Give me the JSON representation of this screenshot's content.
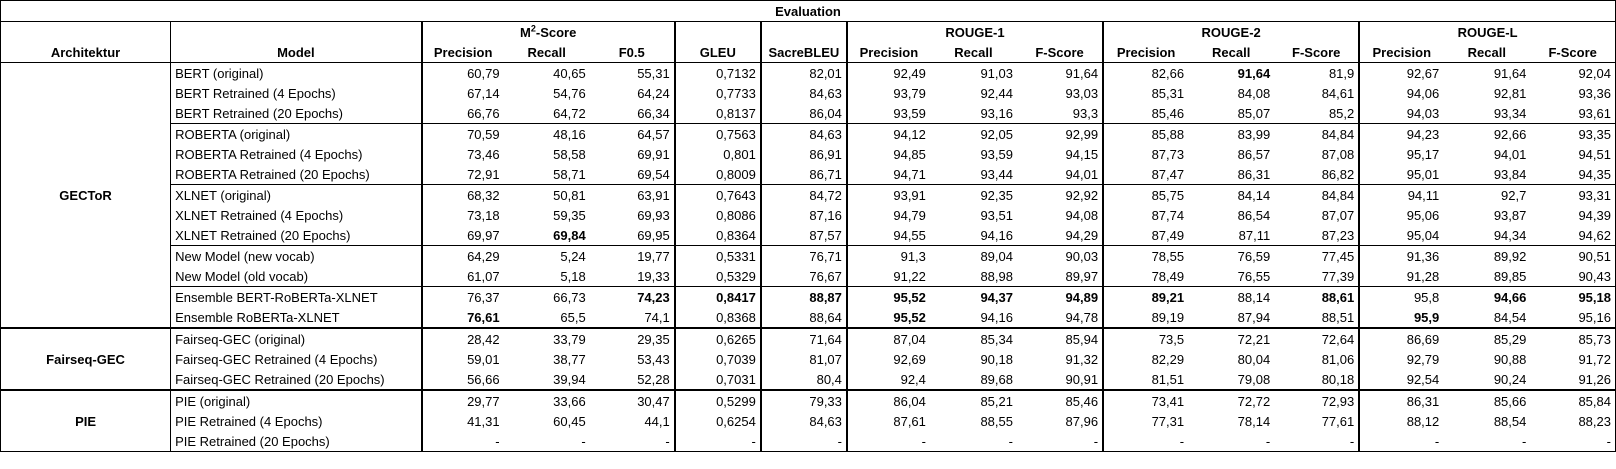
{
  "title": "Evaluation",
  "group_headers": {
    "m2": "M²-Score",
    "rouge1": "ROUGE-1",
    "rouge2": "ROUGE-2",
    "rougel": "ROUGE-L"
  },
  "columns": {
    "architecture": "Architektur",
    "model": "Model",
    "m2_precision": "Precision",
    "m2_recall": "Recall",
    "m2_f05": "F0.5",
    "gleu": "GLEU",
    "sacrebleu": "SacreBLEU",
    "r1_precision": "Precision",
    "r1_recall": "Recall",
    "r1_fscore": "F-Score",
    "r2_precision": "Precision",
    "r2_recall": "Recall",
    "r2_fscore": "F-Score",
    "rl_precision": "Precision",
    "rl_recall": "Recall",
    "rl_fscore": "F-Score"
  },
  "architectures": {
    "gector": "GECToR",
    "fairseq": "Fairseq-GEC",
    "pie": "PIE"
  },
  "rows": [
    {
      "model": "BERT (original)",
      "v": [
        "60,79",
        "40,65",
        "55,31",
        "0,7132",
        "82,01",
        "92,49",
        "91,03",
        "91,64",
        "82,66",
        "91,64",
        "81,9",
        "92,67",
        "91,64",
        "92,04"
      ]
    },
    {
      "model": "BERT Retrained (4 Epochs)",
      "v": [
        "67,14",
        "54,76",
        "64,24",
        "0,7733",
        "84,63",
        "93,79",
        "92,44",
        "93,03",
        "85,31",
        "84,08",
        "84,61",
        "94,06",
        "92,81",
        "93,36"
      ]
    },
    {
      "model": "BERT Retrained (20 Epochs)",
      "v": [
        "66,76",
        "64,72",
        "66,34",
        "0,8137",
        "86,04",
        "93,59",
        "93,16",
        "93,3",
        "85,46",
        "85,07",
        "85,2",
        "94,03",
        "93,34",
        "93,61"
      ]
    },
    {
      "model": "ROBERTA (original)",
      "v": [
        "70,59",
        "48,16",
        "64,57",
        "0,7563",
        "84,63",
        "94,12",
        "92,05",
        "92,99",
        "85,88",
        "83,99",
        "84,84",
        "94,23",
        "92,66",
        "93,35"
      ]
    },
    {
      "model": "ROBERTA Retrained (4 Epochs)",
      "v": [
        "73,46",
        "58,58",
        "69,91",
        "0,801",
        "86,91",
        "94,85",
        "93,59",
        "94,15",
        "87,73",
        "86,57",
        "87,08",
        "95,17",
        "94,01",
        "94,51"
      ]
    },
    {
      "model": "ROBERTA Retrained (20 Epochs)",
      "v": [
        "72,91",
        "58,71",
        "69,54",
        "0,8009",
        "86,71",
        "94,71",
        "93,44",
        "94,01",
        "87,47",
        "86,31",
        "86,82",
        "95,01",
        "93,84",
        "94,35"
      ]
    },
    {
      "model": "XLNET (original)",
      "v": [
        "68,32",
        "50,81",
        "63,91",
        "0,7643",
        "84,72",
        "93,91",
        "92,35",
        "92,92",
        "85,75",
        "84,14",
        "84,84",
        "94,11",
        "92,7",
        "93,31"
      ]
    },
    {
      "model": "XLNET Retrained (4 Epochs)",
      "v": [
        "73,18",
        "59,35",
        "69,93",
        "0,8086",
        "87,16",
        "94,79",
        "93,51",
        "94,08",
        "87,74",
        "86,54",
        "87,07",
        "95,06",
        "93,87",
        "94,39"
      ]
    },
    {
      "model": "XLNET Retrained (20 Epochs)",
      "v": [
        "69,97",
        "69,84",
        "69,95",
        "0,8364",
        "87,57",
        "94,55",
        "94,16",
        "94,29",
        "87,49",
        "87,11",
        "87,23",
        "95,04",
        "94,34",
        "94,62"
      ]
    },
    {
      "model": "New Model (new vocab)",
      "v": [
        "64,29",
        "5,24",
        "19,77",
        "0,5331",
        "76,71",
        "91,3",
        "89,04",
        "90,03",
        "78,55",
        "76,59",
        "77,45",
        "91,36",
        "89,92",
        "90,51"
      ]
    },
    {
      "model": "New Model (old vocab)",
      "v": [
        "61,07",
        "5,18",
        "19,33",
        "0,5329",
        "76,67",
        "91,22",
        "88,98",
        "89,97",
        "78,49",
        "76,55",
        "77,39",
        "91,28",
        "89,85",
        "90,43"
      ]
    },
    {
      "model": "Ensemble BERT-RoBERTa-XLNET",
      "v": [
        "76,37",
        "66,73",
        "74,23",
        "0,8417",
        "88,87",
        "95,52",
        "94,37",
        "94,89",
        "89,21",
        "88,14",
        "88,61",
        "95,8",
        "94,66",
        "95,18"
      ]
    },
    {
      "model": "Ensemble RoBERTa-XLNET",
      "v": [
        "76,61",
        "65,5",
        "74,1",
        "0,8368",
        "88,64",
        "95,52",
        "94,16",
        "94,78",
        "89,19",
        "87,94",
        "88,51",
        "95,9",
        "84,54",
        "95,16"
      ]
    },
    {
      "model": "Fairseq-GEC (original)",
      "v": [
        "28,42",
        "33,79",
        "29,35",
        "0,6265",
        "71,64",
        "87,04",
        "85,34",
        "85,94",
        "73,5",
        "72,21",
        "72,64",
        "86,69",
        "85,29",
        "85,73"
      ]
    },
    {
      "model": "Fairseq-GEC Retrained (4 Epochs)",
      "v": [
        "59,01",
        "38,77",
        "53,43",
        "0,7039",
        "81,07",
        "92,69",
        "90,18",
        "91,32",
        "82,29",
        "80,04",
        "81,06",
        "92,79",
        "90,88",
        "91,72"
      ]
    },
    {
      "model": "Fairseq-GEC Retrained (20 Epochs)",
      "v": [
        "56,66",
        "39,94",
        "52,28",
        "0,7031",
        "80,4",
        "92,4",
        "89,68",
        "90,91",
        "81,51",
        "79,08",
        "80,18",
        "92,54",
        "90,24",
        "91,26"
      ]
    },
    {
      "model": "PIE (original)",
      "v": [
        "29,77",
        "33,66",
        "30,47",
        "0,5299",
        "79,33",
        "86,04",
        "85,21",
        "85,46",
        "73,41",
        "72,72",
        "72,93",
        "86,31",
        "85,66",
        "85,84"
      ]
    },
    {
      "model": "PIE Retrained (4 Epochs)",
      "v": [
        "41,31",
        "60,45",
        "44,1",
        "0,6254",
        "84,63",
        "87,61",
        "88,55",
        "87,96",
        "77,31",
        "78,14",
        "77,61",
        "88,12",
        "88,54",
        "88,23"
      ]
    },
    {
      "model": "PIE Retrained (20 Epochs)",
      "v": [
        "-",
        "-",
        "-",
        "-",
        "-",
        "-",
        "-",
        "-",
        "-",
        "-",
        "-",
        "-",
        "-",
        "-"
      ]
    }
  ],
  "bold_cells": [
    [
      0,
      9
    ],
    [
      8,
      1
    ],
    [
      11,
      2
    ],
    [
      11,
      3
    ],
    [
      11,
      4
    ],
    [
      11,
      5
    ],
    [
      11,
      6
    ],
    [
      11,
      7
    ],
    [
      11,
      8
    ],
    [
      11,
      10
    ],
    [
      11,
      12
    ],
    [
      11,
      13
    ],
    [
      12,
      0
    ],
    [
      12,
      5
    ],
    [
      12,
      11
    ]
  ]
}
